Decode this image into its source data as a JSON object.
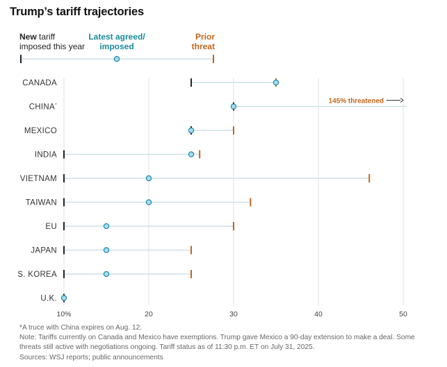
{
  "chart_data": {
    "type": "dot-range",
    "title": "Trump’s tariff trajectories",
    "legend": {
      "new_bold": "New",
      "new_rest": " tariff",
      "new_line2": "imposed this year",
      "latest_line1": "Latest agreed/",
      "latest_line2": "imposed",
      "prior_line1": "Prior",
      "prior_line2": "threat"
    },
    "x_ticks": [
      "10%",
      "20",
      "30",
      "40",
      "50"
    ],
    "x_tick_values": [
      10,
      20,
      30,
      40,
      50
    ],
    "xlim": [
      10,
      50
    ],
    "countries": [
      {
        "label": "CANADA",
        "sup": "",
        "new": 25,
        "latest": 35,
        "prior": 35
      },
      {
        "label": "CHINA",
        "sup": "*",
        "new": 30,
        "latest": 30,
        "prior": null,
        "threat_label": "145% threatened",
        "threat_value": 145
      },
      {
        "label": "MEXICO",
        "sup": "",
        "new": 25,
        "latest": 25,
        "prior": 30
      },
      {
        "label": "INDIA",
        "sup": "",
        "new": 10,
        "latest": 25,
        "prior": 26
      },
      {
        "label": "VIETNAM",
        "sup": "",
        "new": 10,
        "latest": 20,
        "prior": 46
      },
      {
        "label": "TAIWAN",
        "sup": "",
        "new": 10,
        "latest": 20,
        "prior": 32
      },
      {
        "label": "EU",
        "sup": "",
        "new": 10,
        "latest": 15,
        "prior": 30
      },
      {
        "label": "JAPAN",
        "sup": "",
        "new": 10,
        "latest": 15,
        "prior": 25
      },
      {
        "label": "S. KOREA",
        "sup": "",
        "new": 10,
        "latest": 15,
        "prior": 25
      },
      {
        "label": "U.K.",
        "sup": "",
        "new": 10,
        "latest": 10,
        "prior": 10
      }
    ],
    "colors": {
      "new": "#222222",
      "latest_fill": "#a9dbee",
      "latest_stroke": "#1f8aa8",
      "latest_text": "#1a8a9a",
      "prior": "#c0651c",
      "range_line": "#cfdfe8",
      "grid": "#e2e2e2"
    }
  },
  "notes": {
    "line1": "*A truce with China expires on Aug. 12.",
    "line2": "Note: Tariffs currently on Canada and Mexico have exemptions. Trump gave Mexico a 90-day extension to make a deal. Some",
    "line3": "threats still active with negotiations ongoing. Tariff status as of 11:30 p.m. ET on July 31, 2025.",
    "line4": "Sources: WSJ reports; public announcements"
  }
}
